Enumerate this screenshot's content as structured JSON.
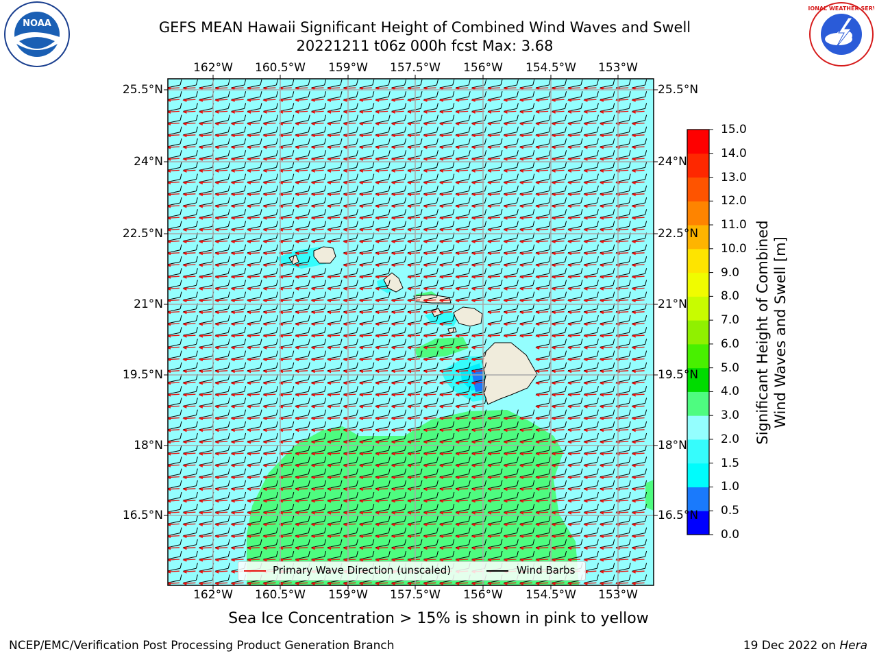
{
  "header": {
    "title_line1": "GEFS MEAN Hawaii Significant Height of Combined Wind Waves and Swell",
    "title_line2": "20221211 t06z 000h fcst   Max: 3.68"
  },
  "logos": {
    "left": {
      "name": "NOAA",
      "ring_text": "NATIONAL OCEANIC AND ATMOSPHERIC ADMINISTRATION",
      "bottom_text": "U.S. DEPARTMENT OF COMMERCE"
    },
    "right": {
      "name": "NATIONAL WEATHER SERVICE"
    }
  },
  "map": {
    "lon_ticks": [
      "162°W",
      "160.5°W",
      "159°W",
      "157.5°W",
      "156°W",
      "154.5°W",
      "153°W"
    ],
    "lat_ticks": [
      "25.5°N",
      "24°N",
      "22.5°N",
      "21°N",
      "19.5°N",
      "18°N",
      "16.5°N"
    ],
    "colors": {
      "ocean": "#94fefe",
      "band_3_4": "#4efc80",
      "band_1_5_2": "#36fcfc",
      "band_1_1_5": "#00eefc",
      "band_0_5_1": "#1a7afc",
      "land": "#f0ecdc",
      "wave_arrow": "#e8120e",
      "wind_barb": "#000000"
    }
  },
  "colorbar": {
    "title_line1": "Significant Height of Combined",
    "title_line2": "Wind Waves and Swell [m]",
    "tick_labels": [
      "15.0",
      "14.0",
      "13.0",
      "12.0",
      "11.0",
      "10.0",
      "9.0",
      "8.0",
      "7.0",
      "6.0",
      "5.0",
      "4.0",
      "3.0",
      "2.0",
      "1.5",
      "1.0",
      "0.5",
      "0.0"
    ],
    "colors": [
      "#0000fe",
      "#1a7afc",
      "#00fcfc",
      "#36fcfc",
      "#94fefe",
      "#4efc80",
      "#00dc00",
      "#48f000",
      "#90f000",
      "#c8fc00",
      "#f0fc00",
      "#fee400",
      "#feb400",
      "#fe8400",
      "#fe5400",
      "#fe2800",
      "#fe0000"
    ]
  },
  "legend": {
    "wave_label": "Primary Wave Direction (unscaled)",
    "wind_label": "Wind Barbs"
  },
  "footer": {
    "note": "Sea Ice Concentration > 15% is shown in pink to yellow",
    "credit": "NCEP/EMC/Verification Post Processing Product Generation Branch",
    "date": "19 Dec 2022 on",
    "host": "Hera"
  }
}
